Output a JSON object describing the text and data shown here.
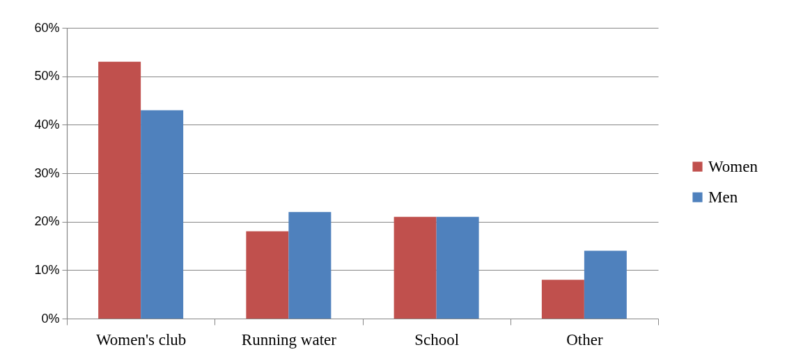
{
  "chart_data": {
    "type": "bar",
    "categories": [
      "Women's club",
      "Running water",
      "School",
      "Other"
    ],
    "series": [
      {
        "name": "Women",
        "color": "#c0504d",
        "values": [
          53,
          18,
          21,
          8
        ]
      },
      {
        "name": "Men",
        "color": "#4f81bd",
        "values": [
          43,
          22,
          21,
          14
        ]
      }
    ],
    "ylim": [
      0,
      60
    ],
    "yticks": [
      {
        "value": 0,
        "label": "0%"
      },
      {
        "value": 10,
        "label": "10%"
      },
      {
        "value": 20,
        "label": "20%"
      },
      {
        "value": 30,
        "label": "30%"
      },
      {
        "value": 40,
        "label": "40%"
      },
      {
        "value": 50,
        "label": "50%"
      },
      {
        "value": 60,
        "label": "60%"
      }
    ],
    "grid": "y",
    "legend": "right"
  }
}
